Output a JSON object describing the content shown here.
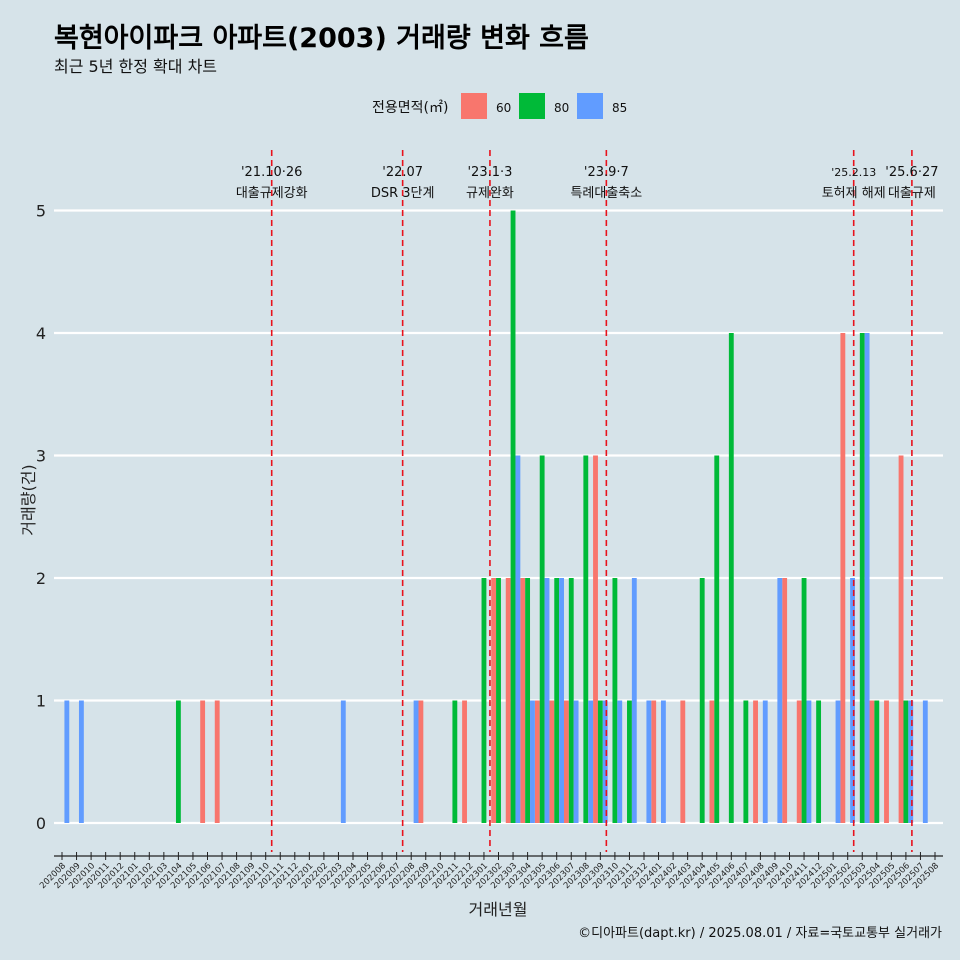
{
  "title": "복현아이파크 아파트(2003) 거래량 변화 흐름",
  "subtitle": "최근 5년 한정 확대 차트",
  "caption": "©디아파트(dapt.kr) / 2025.08.01 / 자료=국토교통부 실거래가",
  "chart_data": {
    "type": "bar",
    "xlabel": "거래년월",
    "ylabel": "거래량(건)",
    "ylim": [
      0,
      5
    ],
    "yticks": [
      0,
      1,
      2,
      3,
      4,
      5
    ],
    "legend": {
      "title": "전용면적(㎡)",
      "position": "top"
    },
    "categories": [
      "202008",
      "202009",
      "202010",
      "202011",
      "202012",
      "202101",
      "202102",
      "202103",
      "202104",
      "202105",
      "202106",
      "202107",
      "202108",
      "202109",
      "202110",
      "202111",
      "202112",
      "202201",
      "202202",
      "202203",
      "202204",
      "202205",
      "202206",
      "202207",
      "202208",
      "202209",
      "202210",
      "202211",
      "202212",
      "202301",
      "202302",
      "202303",
      "202304",
      "202305",
      "202306",
      "202307",
      "202308",
      "202309",
      "202310",
      "202311",
      "202312",
      "202401",
      "202402",
      "202403",
      "202404",
      "202405",
      "202406",
      "202407",
      "202408",
      "202409",
      "202410",
      "202411",
      "202412",
      "202501",
      "202502",
      "202503",
      "202504",
      "202505",
      "202506",
      "202507",
      "202508"
    ],
    "series": [
      {
        "name": "60",
        "color": "#f8766d",
        "values": [
          0,
          0,
          0,
          0,
          0,
          0,
          0,
          0,
          0,
          0,
          1,
          1,
          0,
          0,
          0,
          0,
          0,
          0,
          0,
          0,
          0,
          0,
          0,
          0,
          0,
          1,
          0,
          0,
          1,
          0,
          2,
          2,
          2,
          1,
          1,
          1,
          0,
          3,
          0,
          0,
          0,
          1,
          0,
          1,
          0,
          1,
          0,
          0,
          1,
          0,
          2,
          1,
          0,
          0,
          4,
          0,
          1,
          1,
          3,
          0,
          0
        ]
      },
      {
        "name": "80",
        "color": "#00ba38",
        "values": [
          0,
          0,
          0,
          0,
          0,
          0,
          0,
          0,
          1,
          0,
          0,
          0,
          0,
          0,
          0,
          0,
          0,
          0,
          0,
          0,
          0,
          0,
          0,
          0,
          0,
          0,
          0,
          1,
          0,
          2,
          2,
          5,
          2,
          3,
          2,
          2,
          3,
          1,
          2,
          1,
          0,
          0,
          0,
          0,
          2,
          3,
          4,
          1,
          0,
          0,
          0,
          2,
          1,
          0,
          0,
          4,
          1,
          0,
          1,
          0,
          0
        ]
      },
      {
        "name": "85",
        "color": "#619cff",
        "values": [
          1,
          1,
          0,
          0,
          0,
          0,
          0,
          0,
          0,
          0,
          0,
          0,
          0,
          0,
          0,
          0,
          0,
          0,
          0,
          1,
          0,
          0,
          0,
          0,
          1,
          0,
          0,
          0,
          0,
          0,
          0,
          3,
          1,
          2,
          2,
          1,
          1,
          1,
          1,
          2,
          1,
          1,
          0,
          0,
          0,
          0,
          0,
          0,
          1,
          2,
          0,
          1,
          0,
          1,
          2,
          4,
          0,
          0,
          1,
          1,
          0
        ]
      }
    ],
    "annotations": [
      {
        "x": "202110",
        "date": "'21.10·26",
        "label": "대출규제강화"
      },
      {
        "x": "202207",
        "date": "'22.07",
        "label": "DSR 3단계"
      },
      {
        "x": "202301",
        "date": "'23.1·3",
        "label": "규제완화"
      },
      {
        "x": "202309",
        "date": "'23.9·7",
        "label": "특례대출축소"
      },
      {
        "x": "202502",
        "date": "'25.2.13",
        "label": "토허제 해제"
      },
      {
        "x": "202506",
        "date": "'25.6·27",
        "label": "대출규제"
      }
    ]
  }
}
